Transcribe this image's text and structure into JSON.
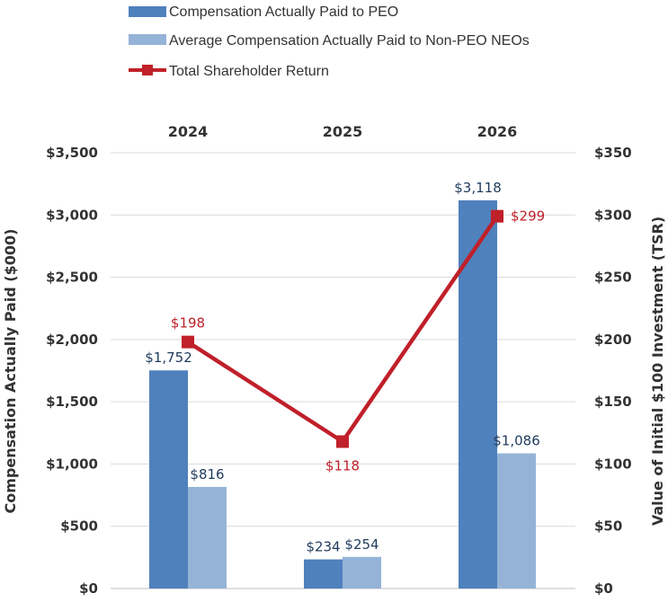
{
  "chart_data": {
    "type": "bar",
    "categories": [
      "2024",
      "2025",
      "2026"
    ],
    "series": [
      {
        "name": "Compensation Actually Paid to PEO",
        "type": "bar",
        "axis": "left",
        "color": "#4f81bd",
        "values": [
          1752,
          234,
          3118
        ],
        "labels": [
          "$1,752",
          "$234",
          "$3,118"
        ]
      },
      {
        "name": "Average Compensation Actually Paid to Non-PEO NEOs",
        "type": "bar",
        "axis": "left",
        "color": "#95b3d7",
        "values": [
          816,
          254,
          1086
        ],
        "labels": [
          "$816",
          "$254",
          "$1,086"
        ]
      },
      {
        "name": "Total Shareholder Return",
        "type": "line",
        "axis": "right",
        "color": "#c0202a",
        "values": [
          198,
          118,
          299
        ],
        "labels": [
          "$198",
          "$118",
          "$299"
        ]
      }
    ],
    "y_left": {
      "label": "Compensation Actually Paid ($000)",
      "ylim": [
        0,
        3500
      ],
      "ticks": [
        "$0",
        "$500",
        "$1,000",
        "$1,500",
        "$2,000",
        "$2,500",
        "$3,000",
        "$3,500"
      ]
    },
    "y_right": {
      "label": "Value of Initial $100 Investment (TSR)",
      "ylim": [
        0,
        350
      ],
      "ticks": [
        "$0",
        "$50",
        "$100",
        "$150",
        "$200",
        "$250",
        "$300",
        "$350"
      ]
    },
    "category_axis_position": "top",
    "grid": true,
    "legend_position": "top-left"
  }
}
